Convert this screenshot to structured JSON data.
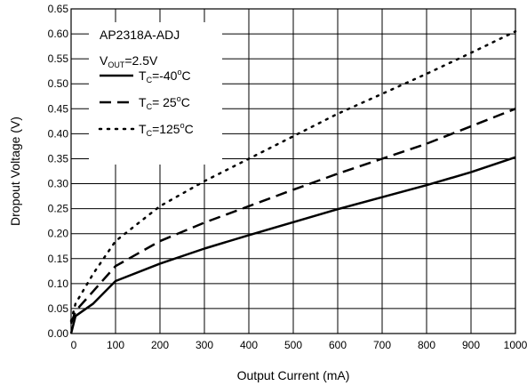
{
  "chart_data": {
    "type": "line",
    "xlabel": "Output Current (mA)",
    "ylabel": "Dropout Voltage (V)",
    "xlim": [
      0,
      1000
    ],
    "ylim": [
      0,
      0.65
    ],
    "xticks": [
      0,
      100,
      200,
      300,
      400,
      500,
      600,
      700,
      800,
      900,
      1000
    ],
    "xtick_labels": [
      "0",
      "100",
      "200",
      "300",
      "400",
      "500",
      "600",
      "700",
      "800",
      "900",
      "1000"
    ],
    "yticks": [
      0,
      0.05,
      0.1,
      0.15,
      0.2,
      0.25,
      0.3,
      0.35,
      0.4,
      0.45,
      0.5,
      0.55,
      0.6,
      0.65
    ],
    "ytick_labels": [
      "0.00",
      "0.05",
      "0.10",
      "0.15",
      "0.20",
      "0.25",
      "0.30",
      "0.35",
      "0.40",
      "0.45",
      "0.50",
      "0.55",
      "0.60",
      "0.65"
    ],
    "grid": true,
    "legend_placement": "top-left",
    "legend": {
      "device": "AP2318A-ADJ",
      "vout": {
        "main": "V",
        "sub": "OUT",
        "value": "=2.5V"
      }
    },
    "series": [
      {
        "label_main": "T",
        "label_sub": "C",
        "label_value": "=-40",
        "label_sup": "o",
        "label_unit": "C",
        "dash": "solid",
        "x": [
          0,
          10,
          50,
          100,
          200,
          300,
          400,
          500,
          600,
          700,
          800,
          900,
          1000
        ],
        "y": [
          0.0,
          0.035,
          0.06,
          0.105,
          0.14,
          0.17,
          0.197,
          0.223,
          0.249,
          0.273,
          0.297,
          0.323,
          0.353
        ]
      },
      {
        "label_main": "T",
        "label_sub": "C",
        "label_value": "= 25",
        "label_sup": "o",
        "label_unit": "C",
        "dash": "dashed",
        "x": [
          0,
          10,
          50,
          100,
          200,
          300,
          400,
          500,
          600,
          700,
          800,
          900,
          1000
        ],
        "y": [
          0.02,
          0.045,
          0.085,
          0.135,
          0.185,
          0.222,
          0.255,
          0.288,
          0.32,
          0.35,
          0.38,
          0.415,
          0.45
        ]
      },
      {
        "label_main": "T",
        "label_sub": "C",
        "label_value": "=125",
        "label_sup": "o",
        "label_unit": "C",
        "dash": "dotted",
        "x": [
          0,
          10,
          50,
          100,
          200,
          300,
          400,
          500,
          600,
          700,
          800,
          900,
          1000
        ],
        "y": [
          0.025,
          0.06,
          0.12,
          0.185,
          0.255,
          0.305,
          0.35,
          0.395,
          0.44,
          0.48,
          0.52,
          0.562,
          0.605
        ]
      }
    ]
  }
}
